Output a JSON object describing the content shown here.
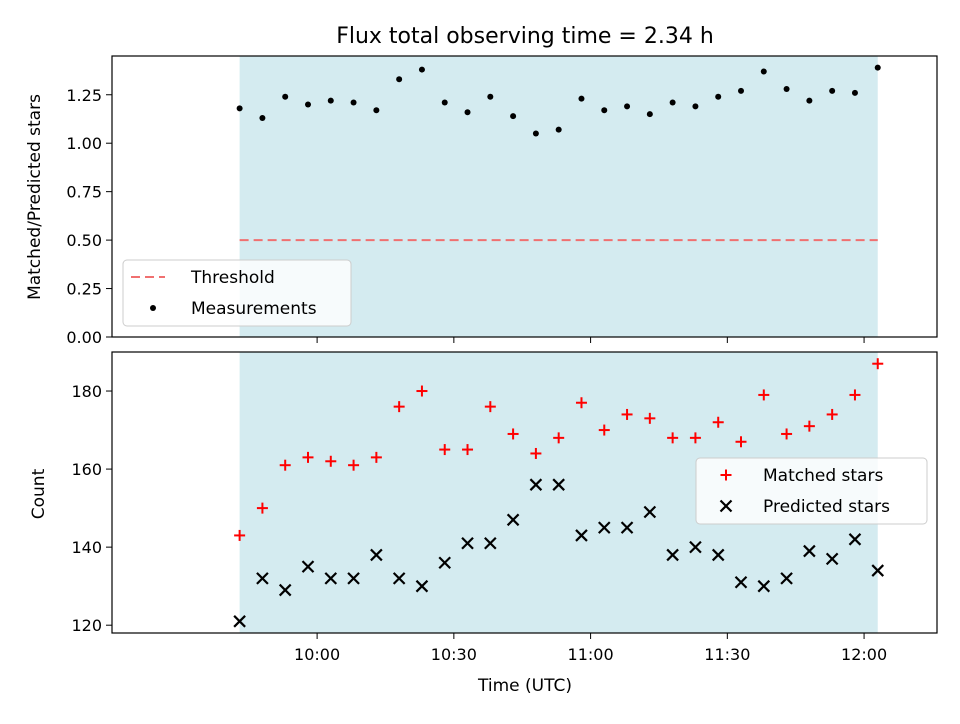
{
  "chart_data": [
    {
      "type": "scatter",
      "title": "Flux total observing time = 2.34 h",
      "ylabel": "Matched/Predicted stars",
      "xlabel": "",
      "ylim": [
        0,
        1.45
      ],
      "yticks": [
        "0.00",
        "0.25",
        "0.50",
        "0.75",
        "1.00",
        "1.25"
      ],
      "threshold": 0.5,
      "legend_position": "lower-left",
      "legend": [
        "Threshold",
        "Measurements"
      ],
      "colors": {
        "shade": "#d4ebf0",
        "threshold": "#f07070",
        "points": "#000000"
      },
      "x": [
        "09:43",
        "09:48",
        "09:53",
        "09:58",
        "10:03",
        "10:08",
        "10:13",
        "10:18",
        "10:23",
        "10:28",
        "10:33",
        "10:38",
        "10:43",
        "10:48",
        "10:53",
        "10:58",
        "11:03",
        "11:08",
        "11:13",
        "11:18",
        "11:23",
        "11:28",
        "11:33",
        "11:38",
        "11:43",
        "11:48",
        "11:53",
        "11:58",
        "12:03"
      ],
      "series": [
        {
          "name": "Measurements",
          "values": [
            1.18,
            1.13,
            1.24,
            1.2,
            1.22,
            1.21,
            1.17,
            1.33,
            1.38,
            1.21,
            1.16,
            1.24,
            1.14,
            1.05,
            1.07,
            1.23,
            1.17,
            1.19,
            1.15,
            1.21,
            1.19,
            1.24,
            1.27,
            1.37,
            1.28,
            1.22,
            1.27,
            1.26,
            1.39
          ]
        }
      ]
    },
    {
      "type": "scatter",
      "title": "",
      "xlabel": "Time (UTC)",
      "ylabel": "Count",
      "ylim": [
        118,
        190
      ],
      "yticks": [
        "120",
        "140",
        "160",
        "180"
      ],
      "xticks": [
        "10:00",
        "10:30",
        "11:00",
        "11:30",
        "12:00"
      ],
      "legend_position": "center-right",
      "legend": [
        "Matched stars",
        "Predicted stars"
      ],
      "colors": {
        "shade": "#d4ebf0",
        "matched": "#ff0000",
        "predicted": "#000000"
      },
      "x": [
        "09:43",
        "09:48",
        "09:53",
        "09:58",
        "10:03",
        "10:08",
        "10:13",
        "10:18",
        "10:23",
        "10:28",
        "10:33",
        "10:38",
        "10:43",
        "10:48",
        "10:53",
        "10:58",
        "11:03",
        "11:08",
        "11:13",
        "11:18",
        "11:23",
        "11:28",
        "11:33",
        "11:38",
        "11:43",
        "11:48",
        "11:53",
        "11:58",
        "12:03"
      ],
      "series": [
        {
          "name": "Matched stars",
          "values": [
            143,
            150,
            161,
            163,
            162,
            161,
            163,
            176,
            180,
            165,
            165,
            176,
            169,
            164,
            168,
            177,
            170,
            174,
            173,
            168,
            168,
            172,
            167,
            179,
            169,
            171,
            174,
            179,
            187
          ]
        },
        {
          "name": "Predicted stars",
          "values": [
            121,
            132,
            129,
            135,
            132,
            132,
            138,
            132,
            130,
            136,
            141,
            141,
            147,
            156,
            156,
            143,
            145,
            145,
            149,
            138,
            140,
            138,
            131,
            130,
            132,
            139,
            137,
            142,
            134
          ]
        }
      ]
    }
  ]
}
